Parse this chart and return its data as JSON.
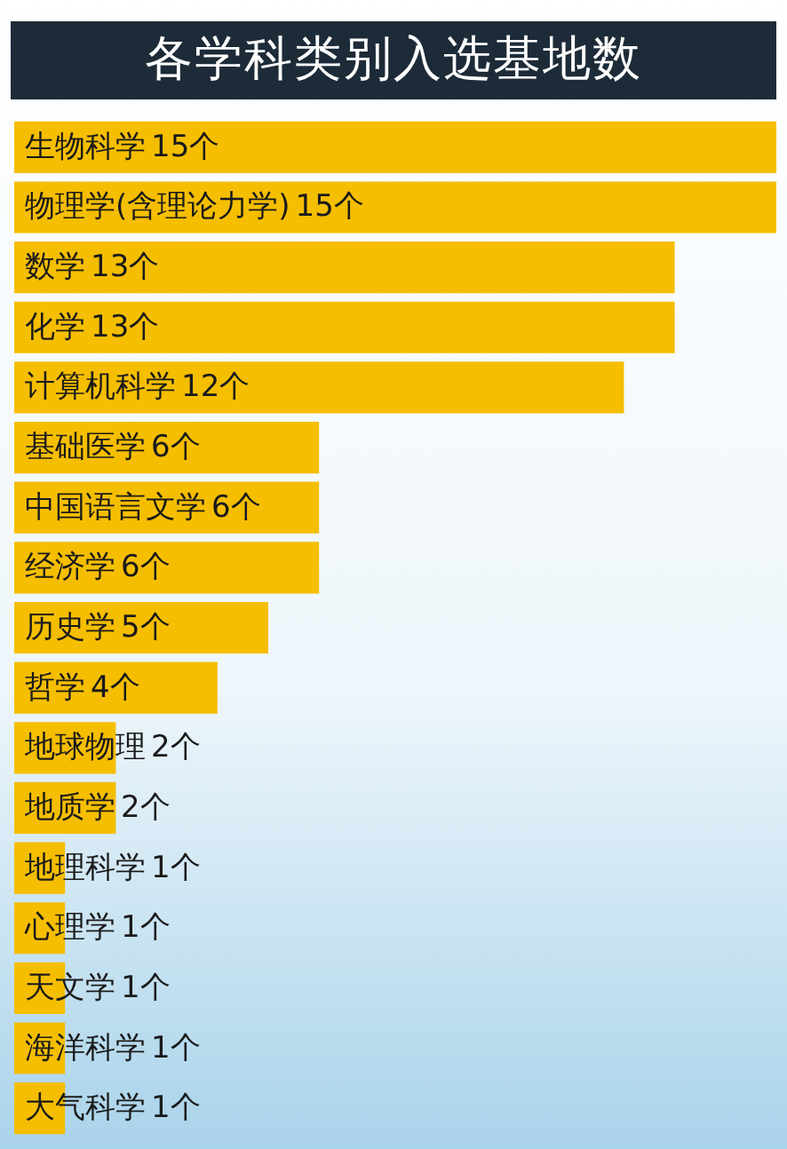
{
  "chart_data": {
    "type": "bar",
    "orientation": "horizontal",
    "title": "各学科类别入选基地数",
    "categories": [
      "生物科学",
      "物理学(含理论力学)",
      "数学",
      "化学",
      "计算机科学",
      "基础医学",
      "中国语言文学",
      "经济学",
      "历史学",
      "哲学",
      "地球物理",
      "地质学",
      "地理科学",
      "心理学",
      "天文学",
      "海洋科学",
      "大气科学"
    ],
    "values": [
      15,
      15,
      13,
      13,
      12,
      6,
      6,
      6,
      5,
      4,
      2,
      2,
      1,
      1,
      1,
      1,
      1
    ],
    "value_labels": [
      "15个",
      "15个",
      "13个",
      "13个",
      "12个",
      "6个",
      "6个",
      "6个",
      "5个",
      "4个",
      "2个",
      "2个",
      "1个",
      "1个",
      "1个",
      "1个",
      "1个"
    ],
    "color": "#f5be00"
  }
}
